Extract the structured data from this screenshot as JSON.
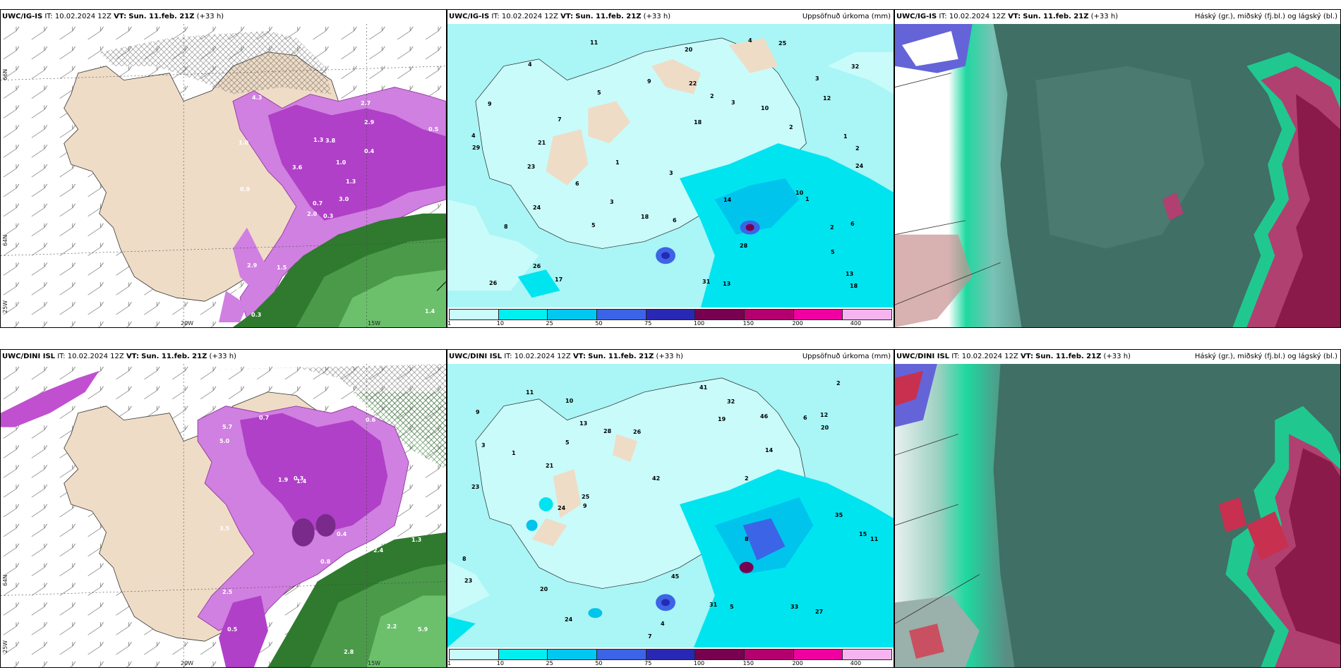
{
  "panels": [
    {
      "model": "UWC/IG-IS",
      "it": "IT: 10.02.2024 12Z",
      "vt_label": "VT:",
      "vt": "Sun. 11.feb. 21Z",
      "lead": "(+33 h)",
      "right": "",
      "lats": [
        "66N",
        "64N",
        "25W"
      ],
      "lons": [
        "20W",
        "15W"
      ]
    },
    {
      "model": "UWC/IG-IS",
      "it": "IT: 10.02.2024 12Z",
      "vt_label": "VT:",
      "vt": "Sun. 11.feb. 21Z",
      "lead": "(+33 h)",
      "right": "Uppsöfnuð úrkoma (mm)"
    },
    {
      "model": "UWC/IG-IS",
      "it": "IT: 10.02.2024 12Z",
      "vt_label": "VT:",
      "vt": "Sun. 11.feb. 21Z",
      "lead": "(+33 h)",
      "right": "Háský (gr.), miðský (fj.bl.) og lágský (bl.)"
    },
    {
      "model": "UWC/DINI ISL",
      "it": "IT: 10.02.2024 12Z",
      "vt_label": "VT:",
      "vt": "Sun. 11.feb. 21Z",
      "lead": "(+33 h)",
      "right": "",
      "lats": [
        "66N",
        "64N",
        "25W"
      ],
      "lons": [
        "20W",
        "15W"
      ]
    },
    {
      "model": "UWC/DINI ISL",
      "it": "IT: 10.02.2024 12Z",
      "vt_label": "VT:",
      "vt": "Sun. 11.feb. 21Z",
      "lead": "(+33 h)",
      "right": "Uppsöfnuð úrkoma (mm)"
    },
    {
      "model": "UWC/DINI ISL",
      "it": "IT: 10.02.2024 12Z",
      "vt_label": "VT:",
      "vt": "Sun. 11.feb. 21Z",
      "lead": "(+33 h)",
      "right": "Háský (gr.), miðský (fj.bl.) og lágský (bl.)"
    }
  ],
  "legend": {
    "ticks": [
      "1",
      "10",
      "25",
      "50",
      "75",
      "100",
      "150",
      "200",
      "400"
    ],
    "colors": [
      "#c9fbfb",
      "#00f0f0",
      "#00c8f0",
      "#3c64e6",
      "#2828b4",
      "#780050",
      "#b4006e",
      "#f000a0",
      "#f5b4f0"
    ]
  },
  "precip_values_top": [
    "5",
    "1",
    "3",
    "2",
    "1",
    "6",
    "3",
    "4",
    "2",
    "3",
    "7",
    "1",
    "2",
    "5",
    "8",
    "3",
    "6",
    "4",
    "11",
    "9",
    "13",
    "22",
    "26",
    "24",
    "18",
    "25",
    "26",
    "28",
    "31",
    "32",
    "17",
    "18",
    "23",
    "20",
    "21",
    "29",
    "24",
    "14",
    "12",
    "10",
    "13",
    "9",
    "18",
    "6",
    "5",
    "4",
    "2",
    "10"
  ],
  "precip_values_bottom": [
    "3",
    "5",
    "2",
    "4",
    "6",
    "7",
    "8",
    "9",
    "12",
    "11",
    "15",
    "13",
    "14",
    "20",
    "23",
    "24",
    "25",
    "26",
    "27",
    "31",
    "33",
    "35",
    "42",
    "45",
    "46",
    "21",
    "20",
    "32",
    "11",
    "24",
    "8",
    "5",
    "2",
    "1",
    "9",
    "10",
    "28",
    "19",
    "41",
    "23"
  ],
  "snow_values_top": [
    "0.3",
    "1.0",
    "0.7",
    "0.6",
    "1.3",
    "1.5",
    "2.7",
    "3.8",
    "2.9",
    "3.0",
    "4.3",
    "1.4",
    "0.9",
    "0.5",
    "2.0",
    "0.4",
    "0.3",
    "1.3",
    "1.0",
    "2.9",
    "3.6"
  ],
  "snow_values_bottom": [
    "2.4",
    "1.3",
    "0.5",
    "0.7",
    "1.4",
    "2.2",
    "2.5",
    "0.6",
    "1.9",
    "2.8",
    "5.0",
    "3.5",
    "5.7",
    "5.9",
    "3.3",
    "2.5",
    "0.8",
    "0.4",
    "0.3"
  ]
}
